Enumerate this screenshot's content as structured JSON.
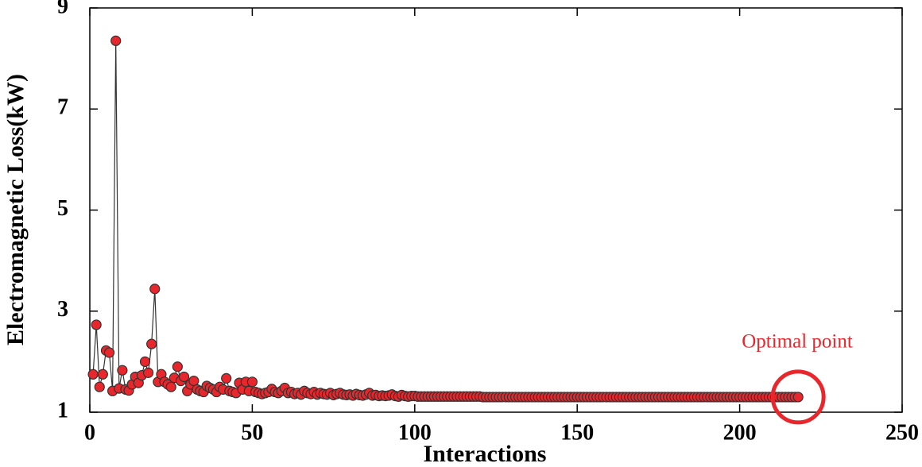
{
  "chart_data": {
    "type": "scatter-line",
    "xlabel": "Interactions",
    "ylabel": "Electromagnetic Loss(kW)",
    "annotation": "Optimal point",
    "xlim": [
      0,
      250
    ],
    "ylim": [
      1,
      9
    ],
    "xticks": [
      0,
      50,
      100,
      150,
      200,
      250
    ],
    "yticks": [
      1,
      3,
      5,
      7,
      9
    ],
    "color": "#e8262b",
    "line_color": "#333333",
    "x": [
      1,
      2,
      3,
      4,
      5,
      6,
      7,
      8,
      9,
      10,
      11,
      12,
      13,
      14,
      15,
      16,
      17,
      18,
      19,
      20,
      21,
      22,
      23,
      24,
      25,
      26,
      27,
      28,
      29,
      30,
      31,
      32,
      33,
      34,
      35,
      36,
      37,
      38,
      39,
      40,
      41,
      42,
      43,
      44,
      45,
      46,
      47,
      48,
      49,
      50,
      51,
      52,
      53,
      54,
      55,
      56,
      57,
      58,
      59,
      60,
      61,
      62,
      63,
      64,
      65,
      66,
      67,
      68,
      69,
      70,
      71,
      72,
      73,
      74,
      75,
      76,
      77,
      78,
      79,
      80,
      81,
      82,
      83,
      84,
      85,
      86,
      87,
      88,
      89,
      90,
      91,
      92,
      93,
      94,
      95,
      96,
      97,
      98,
      99,
      100,
      101,
      102,
      103,
      104,
      105,
      106,
      107,
      108,
      109,
      110,
      111,
      112,
      113,
      114,
      115,
      116,
      117,
      118,
      119,
      120,
      121,
      122,
      123,
      124,
      125,
      126,
      127,
      128,
      129,
      130,
      131,
      132,
      133,
      134,
      135,
      136,
      137,
      138,
      139,
      140,
      141,
      142,
      143,
      144,
      145,
      146,
      147,
      148,
      149,
      150,
      151,
      152,
      153,
      154,
      155,
      156,
      157,
      158,
      159,
      160,
      161,
      162,
      163,
      164,
      165,
      166,
      167,
      168,
      169,
      170,
      171,
      172,
      173,
      174,
      175,
      176,
      177,
      178,
      179,
      180,
      181,
      182,
      183,
      184,
      185,
      186,
      187,
      188,
      189,
      190,
      191,
      192,
      193,
      194,
      195,
      196,
      197,
      198,
      199,
      200,
      201,
      202,
      203,
      204,
      205,
      206,
      207,
      208,
      209,
      210,
      211,
      212,
      213,
      214,
      215,
      216,
      217,
      218
    ],
    "values": [
      1.75,
      2.73,
      1.5,
      1.75,
      2.22,
      2.18,
      1.42,
      8.35,
      1.47,
      1.83,
      1.45,
      1.43,
      1.55,
      1.7,
      1.58,
      1.73,
      2.0,
      1.78,
      2.35,
      3.44,
      1.6,
      1.75,
      1.6,
      1.55,
      1.5,
      1.68,
      1.9,
      1.62,
      1.7,
      1.42,
      1.55,
      1.62,
      1.45,
      1.42,
      1.4,
      1.52,
      1.48,
      1.45,
      1.4,
      1.5,
      1.45,
      1.67,
      1.42,
      1.4,
      1.38,
      1.58,
      1.45,
      1.6,
      1.42,
      1.6,
      1.4,
      1.38,
      1.36,
      1.38,
      1.4,
      1.46,
      1.4,
      1.38,
      1.42,
      1.48,
      1.38,
      1.4,
      1.36,
      1.38,
      1.35,
      1.42,
      1.38,
      1.36,
      1.4,
      1.35,
      1.38,
      1.36,
      1.35,
      1.38,
      1.34,
      1.36,
      1.38,
      1.35,
      1.34,
      1.35,
      1.33,
      1.36,
      1.34,
      1.33,
      1.35,
      1.38,
      1.33,
      1.34,
      1.32,
      1.33,
      1.32,
      1.33,
      1.35,
      1.32,
      1.31,
      1.34,
      1.32,
      1.31,
      1.32,
      1.32,
      1.31,
      1.31,
      1.31,
      1.31,
      1.31,
      1.31,
      1.31,
      1.31,
      1.31,
      1.31,
      1.31,
      1.31,
      1.31,
      1.31,
      1.31,
      1.31,
      1.31,
      1.31,
      1.31,
      1.31,
      1.3,
      1.3,
      1.3,
      1.3,
      1.3,
      1.3,
      1.3,
      1.3,
      1.3,
      1.3,
      1.3,
      1.3,
      1.3,
      1.3,
      1.3,
      1.3,
      1.3,
      1.3,
      1.3,
      1.3,
      1.3,
      1.3,
      1.3,
      1.3,
      1.3,
      1.3,
      1.3,
      1.3,
      1.3,
      1.3,
      1.3,
      1.3,
      1.3,
      1.3,
      1.3,
      1.3,
      1.3,
      1.3,
      1.3,
      1.3,
      1.3,
      1.3,
      1.3,
      1.3,
      1.3,
      1.3,
      1.3,
      1.3,
      1.3,
      1.3,
      1.3,
      1.3,
      1.3,
      1.3,
      1.3,
      1.3,
      1.3,
      1.3,
      1.3,
      1.3,
      1.3,
      1.3,
      1.3,
      1.3,
      1.3,
      1.3,
      1.3,
      1.3,
      1.3,
      1.3,
      1.3,
      1.3,
      1.3,
      1.3,
      1.3,
      1.3,
      1.3,
      1.3,
      1.3,
      1.3,
      1.3,
      1.3,
      1.3,
      1.3,
      1.3,
      1.3,
      1.3,
      1.3,
      1.3,
      1.3,
      1.3,
      1.3,
      1.3,
      1.3,
      1.3,
      1.3,
      1.3,
      1.3
    ]
  }
}
